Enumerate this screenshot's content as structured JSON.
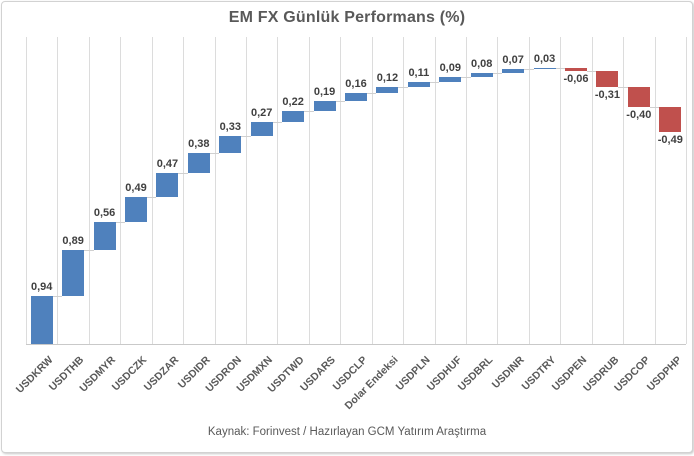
{
  "title": "EM FX Günlük Performans (%)",
  "source": {
    "caption": "Kaynak: Forinvest / Hazırlayan GCM Yatırım Araştırma"
  },
  "colors": {
    "positive": "#4F81BD",
    "negative": "#C0504D",
    "gridline": "#dcdcdc",
    "axis_line": "#c9c9c9",
    "connector": "#d0d0d0",
    "title_text": "#595959",
    "value_text": "#404040",
    "axis_text": "#595959"
  },
  "chart_data": {
    "type": "bar",
    "subtype": "waterfall",
    "title": "EM FX Günlük Performans (%)",
    "xlabel": "",
    "ylabel": "",
    "ylim": [
      0,
      6
    ],
    "grid": "vertical-only",
    "legend": "none",
    "value_format": "decimal-comma",
    "categories": [
      "USDKRW",
      "USDTHB",
      "USDMYR",
      "USDCZK",
      "USDZAR",
      "USDIDR",
      "USDRON",
      "USDMXN",
      "USDTWD",
      "USDARS",
      "USDCLP",
      "Dolar Endeksi",
      "USDPLN",
      "USDHUF",
      "USDBRL",
      "USDINR",
      "USDTRY",
      "USDPEN",
      "USDRUB",
      "USDCOP",
      "USDPHP"
    ],
    "values": [
      0.94,
      0.89,
      0.56,
      0.49,
      0.47,
      0.38,
      0.33,
      0.27,
      0.22,
      0.19,
      0.16,
      0.12,
      0.11,
      0.09,
      0.08,
      0.07,
      0.03,
      -0.06,
      -0.31,
      -0.4,
      -0.49
    ],
    "value_labels": [
      "0,94",
      "0,89",
      "0,56",
      "0,49",
      "0,47",
      "0,38",
      "0,33",
      "0,27",
      "0,22",
      "0,19",
      "0,16",
      "0,12",
      "0,11",
      "0,09",
      "0,08",
      "0,07",
      "0,03",
      "-0,06",
      "-0,31",
      "-0,40",
      "-0,49"
    ]
  }
}
